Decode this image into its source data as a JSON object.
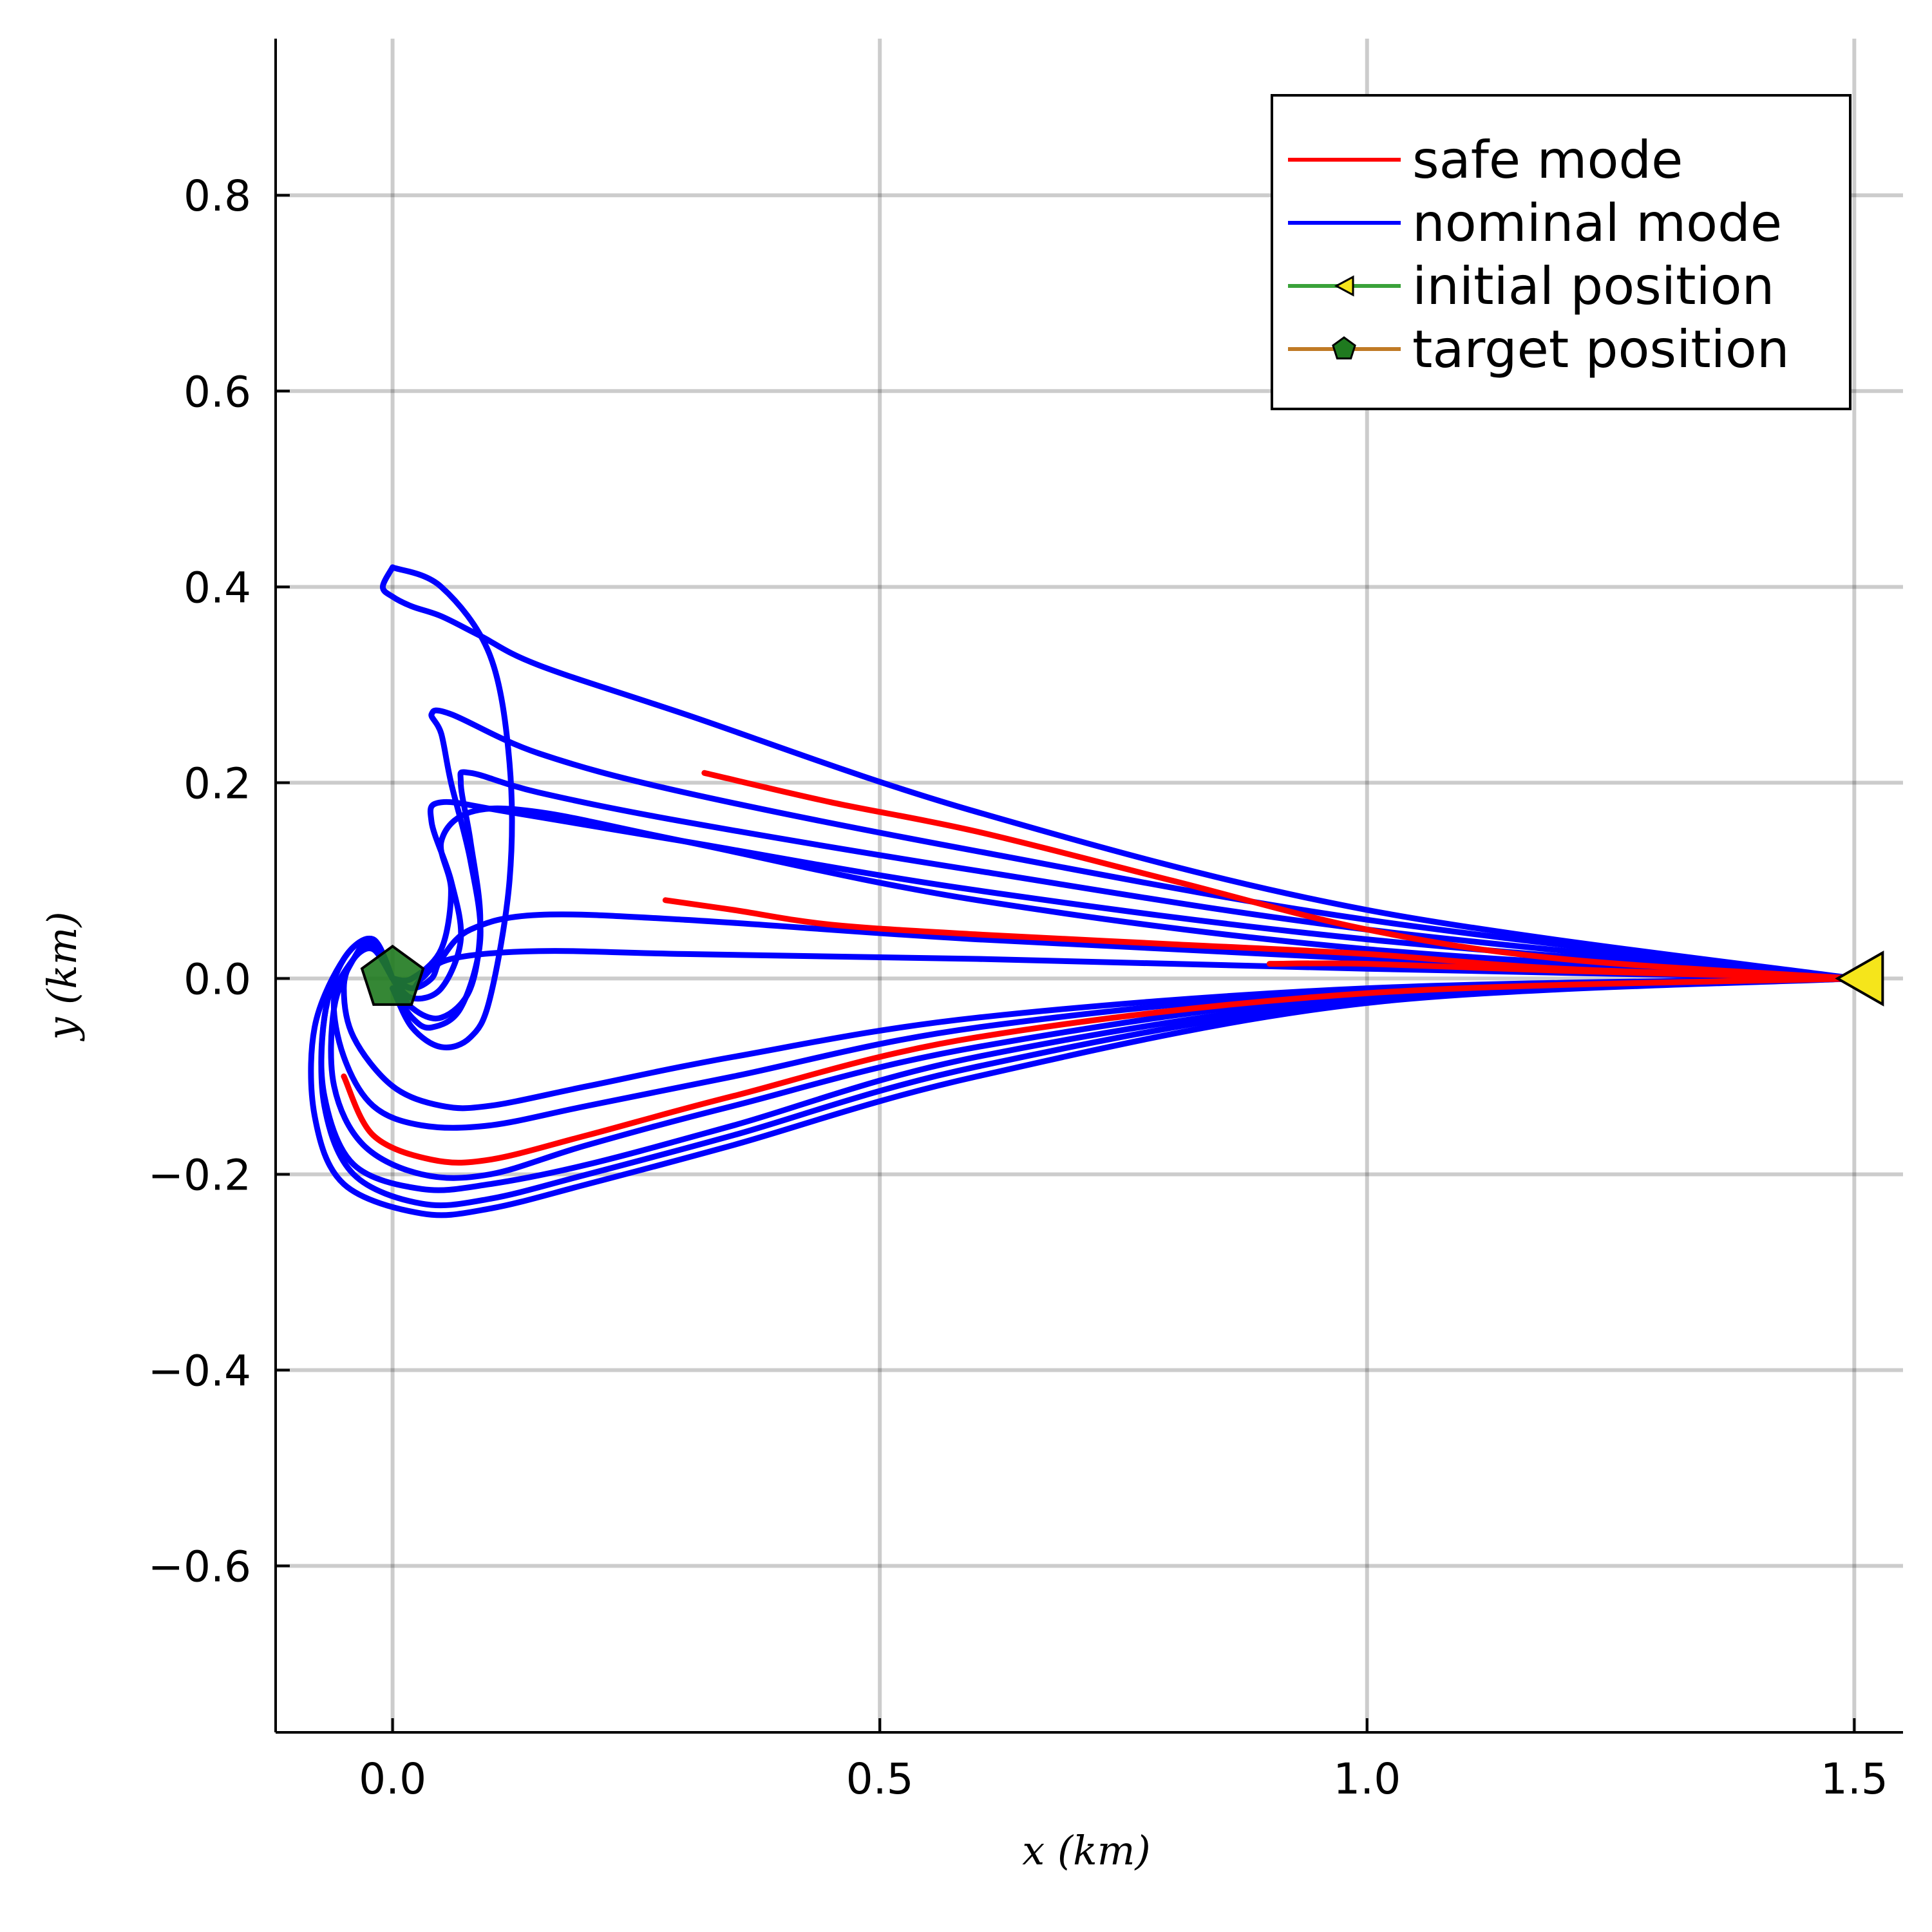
{
  "chart_data": {
    "type": "line",
    "xlabel": "x (km)",
    "ylabel": "y (km)",
    "xlim": [
      -0.12,
      1.55
    ],
    "ylim": [
      -0.77,
      0.96
    ],
    "grid": true,
    "legend_placement": "top-right",
    "x_ticks": [
      {
        "value": 0.0,
        "label": "0.0"
      },
      {
        "value": 0.5,
        "label": "0.5"
      },
      {
        "value": 1.0,
        "label": "1.0"
      },
      {
        "value": 1.5,
        "label": "1.5"
      }
    ],
    "y_ticks": [
      {
        "value": 0.8,
        "label": "0.8"
      },
      {
        "value": 0.6,
        "label": "0.6"
      },
      {
        "value": 0.4,
        "label": "0.4"
      },
      {
        "value": 0.2,
        "label": "0.2"
      },
      {
        "value": 0.0,
        "label": "0.0"
      },
      {
        "value": -0.2,
        "label": "−0.2"
      },
      {
        "value": -0.4,
        "label": "−0.4"
      },
      {
        "value": -0.6,
        "label": "−0.6"
      }
    ],
    "legend": [
      {
        "label": "safe mode",
        "color": "#ff0000",
        "marker": "none"
      },
      {
        "label": "nominal mode",
        "color": "#0000ff",
        "marker": "none"
      },
      {
        "label": "initial position",
        "color": "#3aa23a",
        "marker": "triangle-left",
        "marker_color": "#f5e51b"
      },
      {
        "label": "target position",
        "color": "#c07a25",
        "marker": "pentagon",
        "marker_color": "#1f7a1f"
      }
    ],
    "series": [
      {
        "mode": "nominal",
        "color": "#0000ff",
        "x": [
          1.5,
          1.0,
          0.6,
          0.3,
          0.15,
          0.09,
          0.05,
          0.02,
          0.0,
          -0.01,
          0.0
        ],
        "y": [
          0.0,
          0.07,
          0.17,
          0.27,
          0.32,
          0.35,
          0.37,
          0.38,
          0.39,
          0.4,
          0.42
        ]
      },
      {
        "mode": "nominal",
        "color": "#0000ff",
        "x": [
          0.0,
          0.05,
          0.1,
          0.12,
          0.12,
          0.1,
          0.08,
          0.05,
          0.02,
          0.0
        ],
        "y": [
          0.42,
          0.4,
          0.33,
          0.22,
          0.1,
          -0.02,
          -0.06,
          -0.07,
          -0.05,
          -0.01
        ]
      },
      {
        "mode": "nominal",
        "color": "#0000ff",
        "x": [
          1.5,
          1.0,
          0.6,
          0.3,
          0.15,
          0.06,
          0.04,
          0.05,
          0.06,
          0.08,
          0.09,
          0.07,
          0.04,
          0.02,
          0.0
        ],
        "y": [
          0.0,
          0.06,
          0.13,
          0.19,
          0.23,
          0.27,
          0.27,
          0.25,
          0.2,
          0.12,
          0.04,
          -0.03,
          -0.05,
          -0.04,
          -0.01
        ]
      },
      {
        "mode": "nominal",
        "color": "#0000ff",
        "x": [
          1.5,
          1.0,
          0.6,
          0.3,
          0.15,
          0.08,
          0.07,
          0.08,
          0.09,
          0.08,
          0.05,
          0.02,
          0.0
        ],
        "y": [
          0.0,
          0.05,
          0.11,
          0.16,
          0.19,
          0.21,
          0.2,
          0.14,
          0.06,
          -0.01,
          -0.04,
          -0.03,
          0.0
        ]
      },
      {
        "mode": "nominal",
        "color": "#0000ff",
        "x": [
          1.5,
          1.0,
          0.6,
          0.3,
          0.12,
          0.05,
          0.04,
          0.06,
          0.07,
          0.05,
          0.02,
          0.0
        ],
        "y": [
          0.0,
          0.04,
          0.09,
          0.14,
          0.17,
          0.18,
          0.16,
          0.1,
          0.04,
          -0.01,
          -0.02,
          0.0
        ]
      },
      {
        "mode": "nominal",
        "color": "#0000ff",
        "x": [
          1.5,
          1.0,
          0.6,
          0.3,
          0.15,
          0.08,
          0.05,
          0.06,
          0.05,
          0.02,
          0.0
        ],
        "y": [
          0.0,
          0.03,
          0.08,
          0.14,
          0.17,
          0.17,
          0.14,
          0.09,
          0.03,
          0.0,
          0.0
        ]
      },
      {
        "mode": "nominal",
        "color": "#0000ff",
        "x": [
          1.5,
          1.0,
          0.6,
          0.3,
          0.15,
          0.08,
          0.05,
          0.04,
          0.02,
          0.0
        ],
        "y": [
          0.0,
          0.02,
          0.04,
          0.06,
          0.065,
          0.05,
          0.02,
          0.0,
          -0.01,
          0.0
        ]
      },
      {
        "mode": "nominal",
        "color": "#0000ff",
        "x": [
          1.5,
          1.0,
          0.6,
          0.3,
          0.15,
          0.06,
          0.03,
          0.02,
          0.0
        ],
        "y": [
          0.0,
          0.01,
          0.02,
          0.025,
          0.028,
          0.02,
          0.0,
          -0.01,
          0.0
        ]
      },
      {
        "mode": "nominal",
        "color": "#0000ff",
        "x": [
          1.5,
          1.0,
          0.6,
          0.35,
          0.2,
          0.1,
          0.05,
          0.0,
          -0.04,
          -0.05,
          -0.04,
          -0.02,
          0.0
        ],
        "y": [
          0.0,
          -0.01,
          -0.04,
          -0.08,
          -0.11,
          -0.13,
          -0.13,
          -0.11,
          -0.06,
          -0.01,
          0.02,
          0.03,
          0.0
        ]
      },
      {
        "mode": "nominal",
        "color": "#0000ff",
        "x": [
          1.5,
          1.0,
          0.6,
          0.35,
          0.2,
          0.1,
          0.03,
          -0.02,
          -0.05,
          -0.06,
          -0.04,
          -0.02,
          0.0
        ],
        "y": [
          0.0,
          -0.012,
          -0.05,
          -0.1,
          -0.13,
          -0.15,
          -0.15,
          -0.13,
          -0.08,
          -0.02,
          0.02,
          0.035,
          0.0
        ]
      },
      {
        "mode": "nominal",
        "color": "#0000ff",
        "x": [
          1.5,
          1.0,
          0.6,
          0.35,
          0.2,
          0.1,
          0.03,
          -0.03,
          -0.06,
          -0.06,
          -0.04,
          -0.02,
          0.0
        ],
        "y": [
          0.0,
          -0.016,
          -0.07,
          -0.13,
          -0.17,
          -0.2,
          -0.2,
          -0.17,
          -0.11,
          -0.03,
          0.02,
          0.04,
          0.0
        ]
      },
      {
        "mode": "nominal",
        "color": "#0000ff",
        "x": [
          1.5,
          1.0,
          0.6,
          0.35,
          0.2,
          0.1,
          0.03,
          -0.04,
          -0.07,
          -0.07,
          -0.05,
          -0.02,
          0.0
        ],
        "y": [
          0.0,
          -0.02,
          -0.08,
          -0.15,
          -0.19,
          -0.21,
          -0.215,
          -0.19,
          -0.12,
          -0.04,
          0.02,
          0.04,
          0.0
        ]
      },
      {
        "mode": "nominal",
        "color": "#0000ff",
        "x": [
          1.5,
          1.0,
          0.6,
          0.35,
          0.2,
          0.1,
          0.03,
          -0.04,
          -0.07,
          -0.07,
          -0.05,
          -0.02,
          0.0
        ],
        "y": [
          0.0,
          -0.022,
          -0.09,
          -0.16,
          -0.2,
          -0.225,
          -0.23,
          -0.2,
          -0.13,
          -0.04,
          0.02,
          0.04,
          0.0
        ]
      },
      {
        "mode": "nominal",
        "color": "#0000ff",
        "x": [
          1.5,
          1.0,
          0.6,
          0.35,
          0.2,
          0.1,
          0.03,
          -0.05,
          -0.08,
          -0.08,
          -0.05,
          -0.02,
          0.0
        ],
        "y": [
          0.0,
          -0.025,
          -0.1,
          -0.17,
          -0.21,
          -0.235,
          -0.24,
          -0.21,
          -0.14,
          -0.05,
          0.02,
          0.04,
          0.0
        ]
      },
      {
        "mode": "safe",
        "color": "#ff0000",
        "x": [
          1.5,
          1.2,
          1.0,
          0.8,
          0.6,
          0.45,
          0.32
        ],
        "y": [
          0.0,
          0.02,
          0.05,
          0.1,
          0.15,
          0.18,
          0.21
        ]
      },
      {
        "mode": "safe",
        "color": "#ff0000",
        "x": [
          1.5,
          1.2,
          1.0,
          0.8,
          0.6,
          0.45,
          0.35,
          0.28
        ],
        "y": [
          0.0,
          0.01,
          0.025,
          0.035,
          0.045,
          0.055,
          0.07,
          0.08
        ]
      },
      {
        "mode": "safe",
        "color": "#ff0000",
        "x": [
          1.5,
          1.2,
          1.0,
          0.9
        ],
        "y": [
          0.0,
          0.008,
          0.015,
          0.015
        ]
      },
      {
        "mode": "safe",
        "color": "#ff0000",
        "x": [
          1.5,
          1.0,
          0.6,
          0.35,
          0.2,
          0.1,
          0.04,
          -0.02,
          -0.05
        ],
        "y": [
          0.0,
          -0.015,
          -0.06,
          -0.12,
          -0.16,
          -0.185,
          -0.185,
          -0.16,
          -0.1
        ]
      }
    ],
    "initial_position": {
      "x": 1.5,
      "y": 0.0
    },
    "target_position": {
      "x": 0.0,
      "y": 0.0
    }
  }
}
